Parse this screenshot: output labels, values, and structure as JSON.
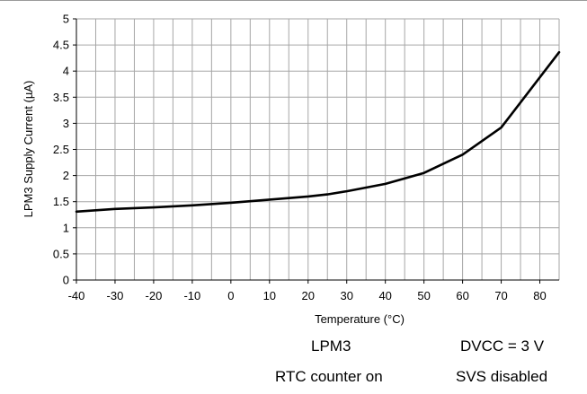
{
  "chart_data": {
    "type": "line",
    "xlabel": "Temperature (°C)",
    "ylabel": "LPM3 Supply Current (µA)",
    "xlim": [
      -40,
      85
    ],
    "ylim": [
      0,
      5
    ],
    "x_ticks": [
      "-40",
      "-30",
      "-20",
      "-10",
      "0",
      "10",
      "20",
      "30",
      "40",
      "50",
      "60",
      "70",
      "80"
    ],
    "y_ticks": [
      "0",
      "0.5",
      "1",
      "1.5",
      "2",
      "2.5",
      "3",
      "3.5",
      "4",
      "4.5",
      "5"
    ],
    "grid": true,
    "series": [
      {
        "color": "#000000",
        "x": [
          -40,
          -30,
          -20,
          -10,
          0,
          10,
          20,
          25,
          30,
          40,
          50,
          60,
          70,
          85
        ],
        "y": [
          1.31,
          1.36,
          1.39,
          1.43,
          1.48,
          1.54,
          1.6,
          1.64,
          1.7,
          1.84,
          2.05,
          2.4,
          2.92,
          4.36
        ]
      }
    ]
  },
  "annotations": {
    "mode": "LPM3",
    "voltage": "DVCC = 3 V",
    "rtc": "RTC counter on",
    "svs": "SVS disabled"
  }
}
